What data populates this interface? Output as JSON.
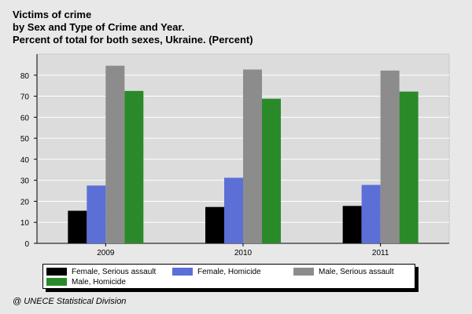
{
  "chart_data": {
    "type": "bar",
    "title_lines": [
      "Victims of crime",
      "by Sex and Type of Crime and Year.",
      "Percent of total for both sexes, Ukraine. (Percent)"
    ],
    "categories": [
      "2009",
      "2010",
      "2011"
    ],
    "series": [
      {
        "name": "Female, Serious assault",
        "color": "#000000",
        "values": [
          15.5,
          17.3,
          17.8
        ]
      },
      {
        "name": "Female, Homicide",
        "color": "#5b6fd6",
        "values": [
          27.5,
          31.2,
          27.8
        ]
      },
      {
        "name": "Male, Serious assault",
        "color": "#8c8c8c",
        "values": [
          84.5,
          82.7,
          82.2
        ]
      },
      {
        "name": "Male, Homicide",
        "color": "#2a8a2a",
        "values": [
          72.5,
          68.8,
          72.2
        ]
      }
    ],
    "yticks": [
      0,
      10,
      20,
      30,
      40,
      50,
      60,
      70,
      80
    ],
    "ylim": [
      0,
      90
    ],
    "grid": true,
    "legend_position": "bottom"
  },
  "credit": "@ UNECE Statistical Division"
}
